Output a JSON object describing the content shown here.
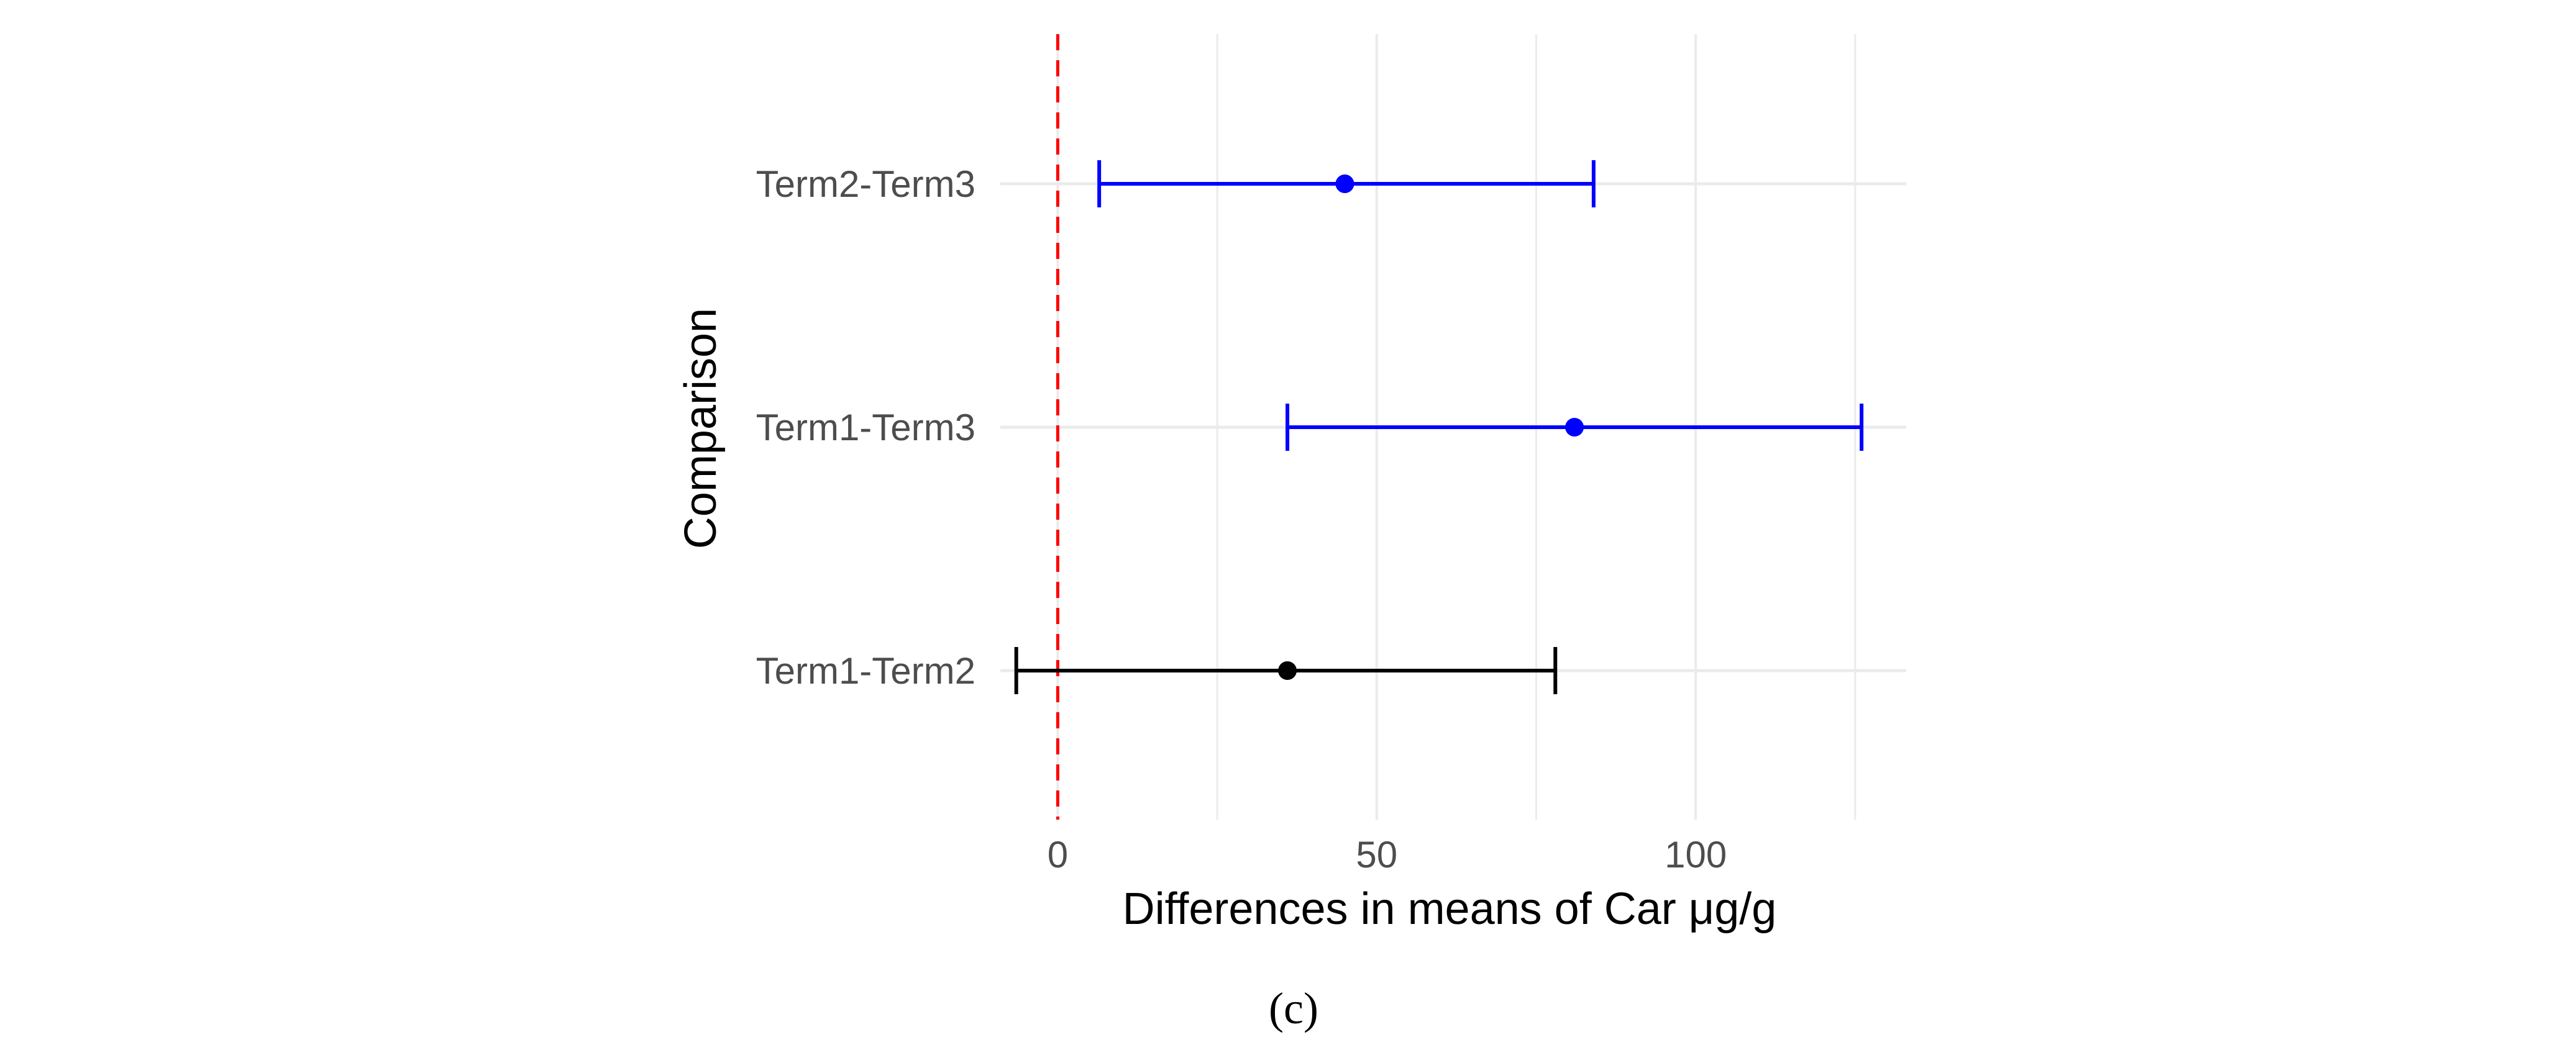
{
  "chart_data": {
    "type": "errorbar",
    "orientation": "horizontal",
    "panel_label": "(c)",
    "xlabel": "Differences in means of Car μg/g",
    "ylabel": "Comparison",
    "xlim": [
      -9,
      133
    ],
    "x_ticks": [
      0,
      50,
      100
    ],
    "x_tick_labels": [
      "0",
      "50",
      "100"
    ],
    "x_minor_gridlines": [
      25,
      75,
      125
    ],
    "reference_line": {
      "x": 0,
      "style": "dashed",
      "color": "#ff0000"
    },
    "grid": true,
    "comparisons": [
      {
        "label": "Term1-Term2",
        "estimate": 36,
        "lower": -6.5,
        "upper": 78,
        "color": "#000000",
        "significant": false
      },
      {
        "label": "Term1-Term3",
        "estimate": 81,
        "lower": 36,
        "upper": 126,
        "color": "#0000ff",
        "significant": true
      },
      {
        "label": "Term2-Term3",
        "estimate": 45,
        "lower": 6.5,
        "upper": 84,
        "color": "#0000ff",
        "significant": true
      }
    ]
  }
}
